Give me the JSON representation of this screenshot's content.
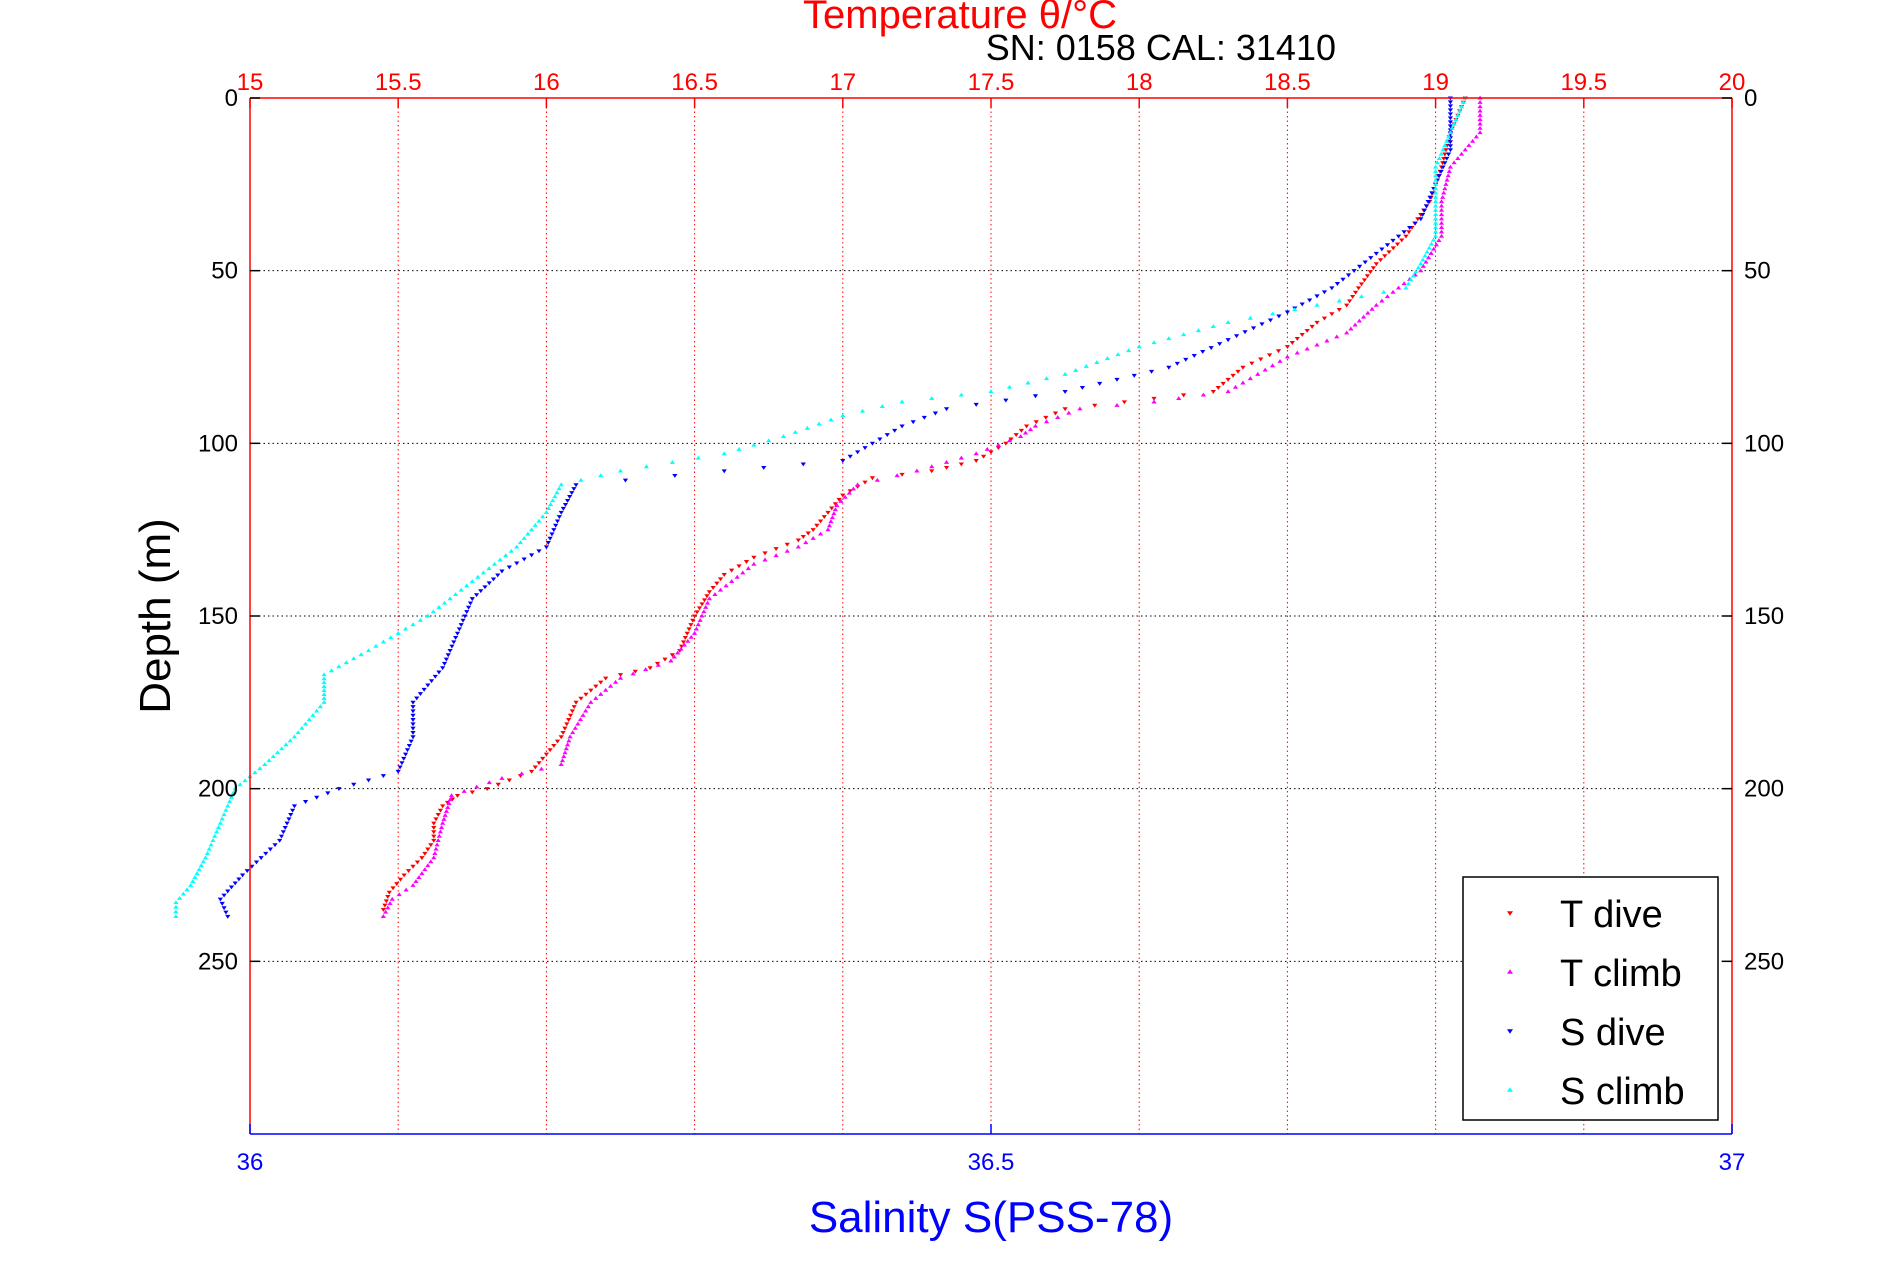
{
  "chart_data": {
    "type": "scatter",
    "title": "Temperature θ/°C",
    "subtitle": "SN: 0158  CAL: 31410",
    "xlabel": "Salinity S(PSS-78)",
    "ylabel": "Depth (m)",
    "x_top": {
      "label": "Temperature θ/°C",
      "range": [
        15,
        20
      ],
      "ticks": [
        15,
        15.5,
        16,
        16.5,
        17,
        17.5,
        18,
        18.5,
        19,
        19.5,
        20
      ],
      "tick_labels": [
        "15",
        "15.5",
        "16",
        "16.5",
        "17",
        "17.5",
        "18",
        "18.5",
        "19",
        "19.5",
        "20"
      ],
      "color": "#ff0000",
      "grid": true
    },
    "x_bottom": {
      "label": "Salinity S(PSS-78)",
      "range": [
        36,
        37
      ],
      "ticks": [
        36,
        36.5,
        37
      ],
      "tick_labels": [
        "36",
        "36.5",
        "37"
      ],
      "color": "#0000ff"
    },
    "y": {
      "label": "Depth (m)",
      "range": [
        0,
        300
      ],
      "reversed": true,
      "ticks": [
        0,
        50,
        100,
        150,
        200,
        250
      ],
      "tick_labels": [
        "0",
        "50",
        "100",
        "150",
        "200",
        "250"
      ],
      "grid": true
    },
    "legend_position": "bottom-right",
    "series": [
      {
        "name": "T dive",
        "axis": "top",
        "marker": "triangle-down",
        "color": "#ff0000",
        "points": [
          [
            19.1,
            0
          ],
          [
            19.05,
            10
          ],
          [
            19.02,
            20
          ],
          [
            18.98,
            30
          ],
          [
            18.9,
            40
          ],
          [
            18.8,
            48
          ],
          [
            18.74,
            55
          ],
          [
            18.7,
            60
          ],
          [
            18.6,
            65
          ],
          [
            18.5,
            72
          ],
          [
            18.35,
            78
          ],
          [
            18.25,
            85
          ],
          [
            17.95,
            88
          ],
          [
            17.75,
            90
          ],
          [
            17.62,
            95
          ],
          [
            17.55,
            100
          ],
          [
            17.45,
            105
          ],
          [
            17.3,
            108
          ],
          [
            17.1,
            110
          ],
          [
            17.0,
            115
          ],
          [
            16.95,
            120
          ],
          [
            16.9,
            125
          ],
          [
            16.85,
            128
          ],
          [
            16.7,
            133
          ],
          [
            16.6,
            138
          ],
          [
            16.55,
            143
          ],
          [
            16.5,
            150
          ],
          [
            16.45,
            160
          ],
          [
            16.35,
            165
          ],
          [
            16.2,
            168
          ],
          [
            16.1,
            175
          ],
          [
            16.05,
            185
          ],
          [
            16.0,
            190
          ],
          [
            15.95,
            195
          ],
          [
            15.8,
            200
          ],
          [
            15.7,
            202
          ],
          [
            15.65,
            205
          ],
          [
            15.62,
            210
          ],
          [
            15.62,
            215
          ],
          [
            15.58,
            220
          ],
          [
            15.52,
            225
          ],
          [
            15.47,
            230
          ],
          [
            15.45,
            235
          ]
        ]
      },
      {
        "name": "T climb",
        "axis": "top",
        "marker": "triangle-up",
        "color": "#ff00ff",
        "points": [
          [
            19.15,
            0
          ],
          [
            19.15,
            10
          ],
          [
            19.05,
            20
          ],
          [
            19.02,
            30
          ],
          [
            19.02,
            40
          ],
          [
            18.95,
            50
          ],
          [
            18.8,
            60
          ],
          [
            18.7,
            68
          ],
          [
            18.5,
            75
          ],
          [
            18.4,
            80
          ],
          [
            18.3,
            85
          ],
          [
            18.05,
            88
          ],
          [
            17.8,
            90
          ],
          [
            17.65,
            95
          ],
          [
            17.6,
            98
          ],
          [
            17.45,
            103
          ],
          [
            17.25,
            108
          ],
          [
            17.05,
            112
          ],
          [
            16.98,
            118
          ],
          [
            16.95,
            125
          ],
          [
            16.85,
            130
          ],
          [
            16.7,
            135
          ],
          [
            16.55,
            145
          ],
          [
            16.5,
            155
          ],
          [
            16.42,
            163
          ],
          [
            16.25,
            168
          ],
          [
            16.15,
            175
          ],
          [
            16.08,
            185
          ],
          [
            16.05,
            193
          ],
          [
            15.85,
            197
          ],
          [
            15.68,
            202
          ],
          [
            15.65,
            210
          ],
          [
            15.62,
            220
          ],
          [
            15.55,
            228
          ],
          [
            15.48,
            232
          ],
          [
            15.45,
            237
          ]
        ]
      },
      {
        "name": "S dive",
        "axis": "bottom",
        "marker": "triangle-down",
        "color": "#0000ff",
        "points": [
          [
            36.81,
            0
          ],
          [
            36.81,
            15
          ],
          [
            36.8,
            25
          ],
          [
            36.79,
            35
          ],
          [
            36.76,
            45
          ],
          [
            36.73,
            55
          ],
          [
            36.7,
            62
          ],
          [
            36.66,
            70
          ],
          [
            36.62,
            78
          ],
          [
            36.55,
            85
          ],
          [
            36.47,
            90
          ],
          [
            36.44,
            95
          ],
          [
            36.42,
            100
          ],
          [
            36.4,
            105
          ],
          [
            36.32,
            108
          ],
          [
            36.22,
            112
          ],
          [
            36.21,
            120
          ],
          [
            36.2,
            130
          ],
          [
            36.17,
            137
          ],
          [
            36.15,
            145
          ],
          [
            36.14,
            155
          ],
          [
            36.13,
            165
          ],
          [
            36.11,
            175
          ],
          [
            36.11,
            185
          ],
          [
            36.1,
            195
          ],
          [
            36.06,
            200
          ],
          [
            36.03,
            205
          ],
          [
            36.02,
            215
          ],
          [
            35.995,
            225
          ],
          [
            35.98,
            232
          ],
          [
            35.985,
            237
          ]
        ]
      },
      {
        "name": "S climb",
        "axis": "bottom",
        "marker": "triangle-up",
        "color": "#00ffff",
        "points": [
          [
            36.82,
            0
          ],
          [
            36.81,
            10
          ],
          [
            36.8,
            20
          ],
          [
            36.8,
            30
          ],
          [
            36.8,
            40
          ],
          [
            36.79,
            48
          ],
          [
            36.78,
            55
          ],
          [
            36.72,
            60
          ],
          [
            36.66,
            65
          ],
          [
            36.6,
            72
          ],
          [
            36.55,
            80
          ],
          [
            36.5,
            85
          ],
          [
            36.44,
            88
          ],
          [
            36.4,
            92
          ],
          [
            36.36,
            98
          ],
          [
            36.32,
            103
          ],
          [
            36.25,
            108
          ],
          [
            36.21,
            112
          ],
          [
            36.2,
            120
          ],
          [
            36.18,
            130
          ],
          [
            36.15,
            140
          ],
          [
            36.12,
            150
          ],
          [
            36.08,
            160
          ],
          [
            36.05,
            167
          ],
          [
            36.05,
            175
          ],
          [
            36.03,
            185
          ],
          [
            36.01,
            193
          ],
          [
            35.99,
            200
          ],
          [
            35.98,
            210
          ],
          [
            35.97,
            220
          ],
          [
            35.96,
            228
          ],
          [
            35.95,
            233
          ],
          [
            35.95,
            237
          ]
        ]
      }
    ]
  }
}
